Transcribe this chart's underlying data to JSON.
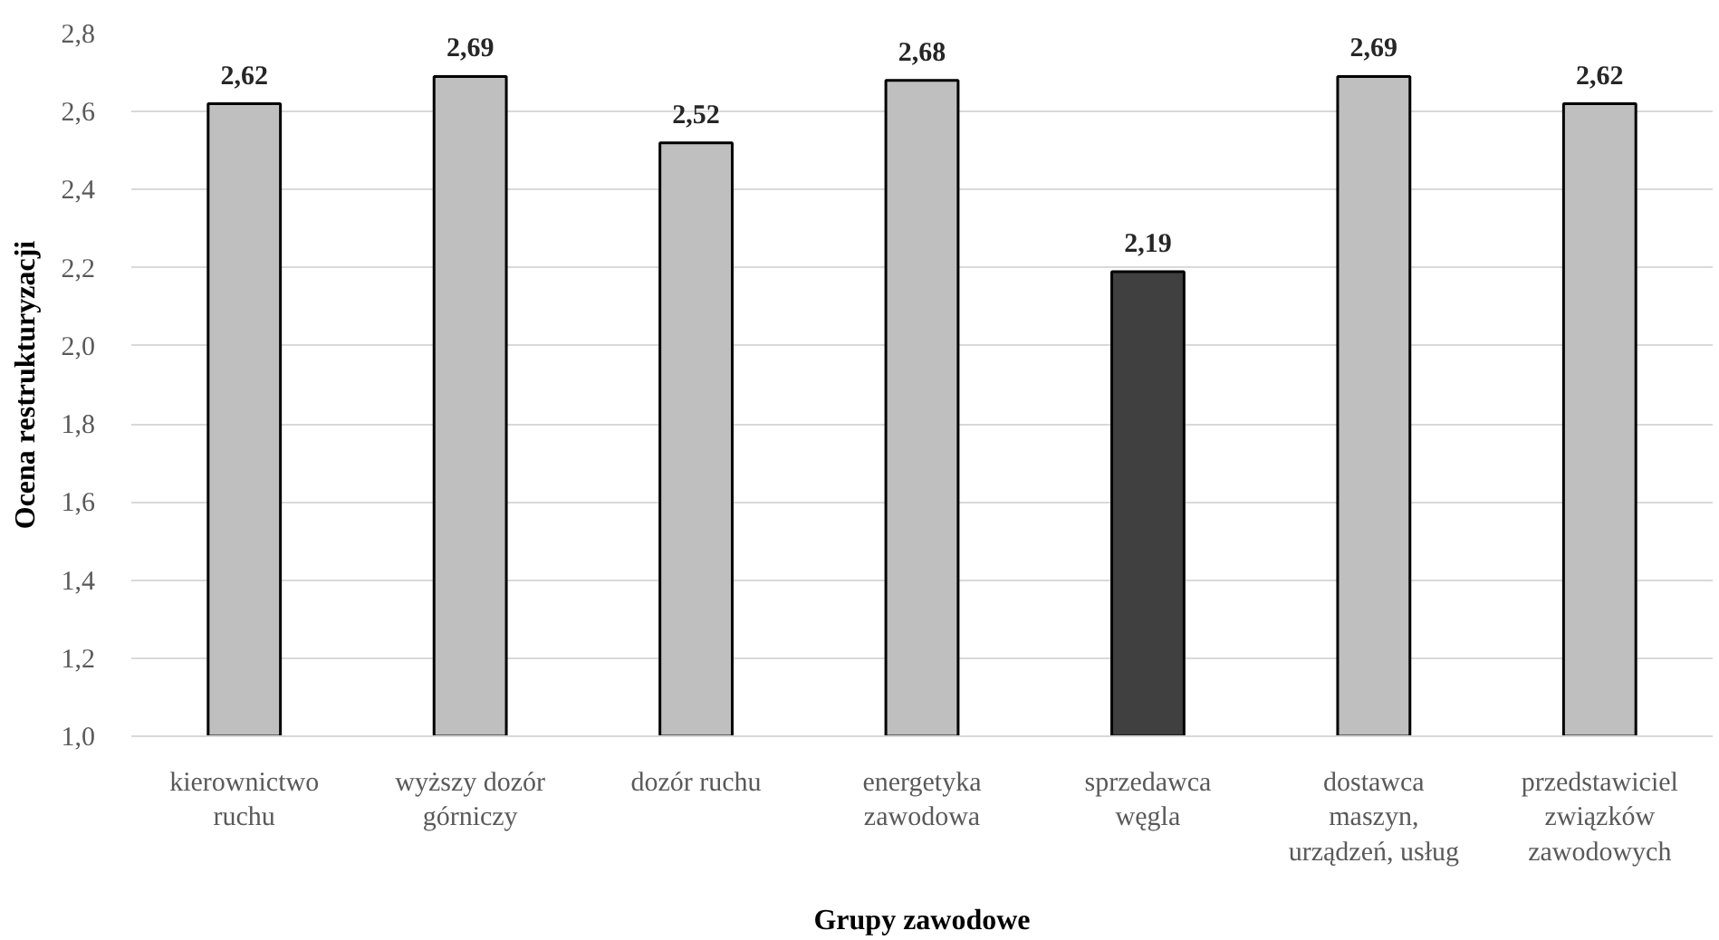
{
  "chart_data": {
    "type": "bar",
    "xlabel": "Grupy zawodowe",
    "ylabel": "Ocena restrukturyzacji",
    "categories": [
      "kierownictwo ruchu",
      "wyższy dozór górniczy",
      "dozór ruchu",
      "energetyka zawodowa",
      "sprzedawca węgla",
      "dostawca maszyn, urządzeń, usług",
      "przedstawiciel związków zawodowych"
    ],
    "values": [
      2.62,
      2.69,
      2.52,
      2.68,
      2.19,
      2.69,
      2.62
    ],
    "value_labels": [
      "2,62",
      "2,69",
      "2,52",
      "2,68",
      "2,19",
      "2,69",
      "2,62"
    ],
    "colors": [
      "#bfbfbf",
      "#bfbfbf",
      "#bfbfbf",
      "#bfbfbf",
      "#404040",
      "#bfbfbf",
      "#bfbfbf"
    ],
    "ylim": [
      1.0,
      2.8
    ],
    "yticks": [
      {
        "value": 1.0,
        "label": "1,0"
      },
      {
        "value": 1.2,
        "label": "1,2"
      },
      {
        "value": 1.4,
        "label": "1,4"
      },
      {
        "value": 1.6,
        "label": "1,6"
      },
      {
        "value": 1.8,
        "label": "1,8"
      },
      {
        "value": 2.0,
        "label": "2,0"
      },
      {
        "value": 2.2,
        "label": "2,2"
      },
      {
        "value": 2.4,
        "label": "2,4"
      },
      {
        "value": 2.6,
        "label": "2,6"
      },
      {
        "value": 2.8,
        "label": "2,8"
      }
    ],
    "grid": "y"
  }
}
